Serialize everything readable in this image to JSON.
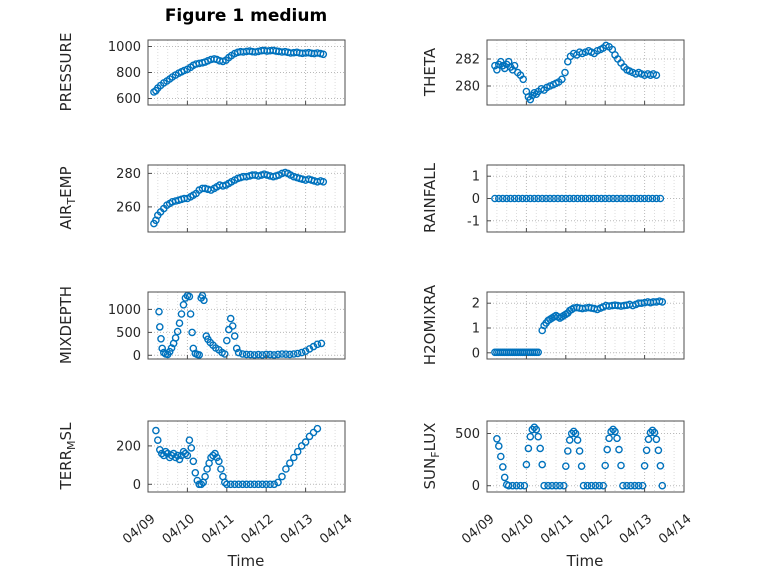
{
  "figure": {
    "title": "Figure 1 medium",
    "xlabel": "Time",
    "background": "#ffffff",
    "marker_color": "#0072BD",
    "axis_color": "#4d4d4d",
    "grid_color": "#b9b9b9",
    "minor_grid_color": "#dcdcdc"
  },
  "x_axis": {
    "lim": [
      0,
      5
    ],
    "ticks": [
      0,
      1,
      2,
      3,
      4,
      5
    ],
    "tick_labels": [
      "04/09",
      "04/10",
      "04/11",
      "04/12",
      "04/13",
      "04/14"
    ],
    "minor_step": 0.25
  },
  "chart_data": [
    {
      "type": "scatter",
      "name": "pressure",
      "col": 0,
      "row": 0,
      "ylabel": {
        "pre": "PRESSURE",
        "sub": "",
        "post": ""
      },
      "ylim": [
        550,
        1050
      ],
      "yticks": [
        600,
        800,
        1000
      ],
      "x": [
        0.15,
        0.2,
        0.25,
        0.32,
        0.4,
        0.48,
        0.55,
        0.62,
        0.7,
        0.78,
        0.85,
        0.92,
        1.0,
        1.08,
        1.15,
        1.22,
        1.3,
        1.38,
        1.45,
        1.52,
        1.6,
        1.68,
        1.75,
        1.82,
        1.9,
        1.98,
        2.05,
        2.12,
        2.2,
        2.28,
        2.35,
        2.42,
        2.5,
        2.58,
        2.65,
        2.72,
        2.8,
        2.88,
        2.95,
        3.02,
        3.1,
        3.18,
        3.25,
        3.32,
        3.4,
        3.48,
        3.55,
        3.62,
        3.7,
        3.78,
        3.85,
        3.92,
        4.0,
        4.08,
        4.15,
        4.22,
        4.3,
        4.38,
        4.45
      ],
      "y": [
        650,
        660,
        680,
        700,
        720,
        735,
        750,
        765,
        780,
        795,
        805,
        815,
        825,
        840,
        855,
        865,
        870,
        875,
        880,
        890,
        900,
        905,
        900,
        890,
        885,
        895,
        915,
        930,
        945,
        955,
        960,
        958,
        962,
        965,
        960,
        958,
        962,
        968,
        970,
        965,
        968,
        970,
        965,
        962,
        958,
        960,
        955,
        950,
        952,
        955,
        950,
        948,
        950,
        952,
        948,
        945,
        950,
        945,
        940
      ]
    },
    {
      "type": "scatter",
      "name": "airtemp",
      "col": 0,
      "row": 1,
      "ylabel": {
        "pre": "AIR",
        "sub": "T",
        "post": "EMP"
      },
      "ylim": [
        245,
        285
      ],
      "yticks": [
        260,
        280
      ],
      "x": [
        0.15,
        0.2,
        0.25,
        0.32,
        0.4,
        0.48,
        0.55,
        0.62,
        0.7,
        0.78,
        0.85,
        0.92,
        1.0,
        1.08,
        1.15,
        1.22,
        1.3,
        1.38,
        1.45,
        1.52,
        1.6,
        1.68,
        1.75,
        1.82,
        1.9,
        1.98,
        2.05,
        2.12,
        2.2,
        2.28,
        2.35,
        2.42,
        2.5,
        2.58,
        2.65,
        2.72,
        2.8,
        2.88,
        2.95,
        3.02,
        3.1,
        3.18,
        3.25,
        3.32,
        3.4,
        3.48,
        3.55,
        3.62,
        3.7,
        3.78,
        3.85,
        3.92,
        4.0,
        4.08,
        4.15,
        4.22,
        4.3,
        4.38,
        4.45
      ],
      "y": [
        250,
        252,
        255,
        257,
        259,
        261,
        262,
        263,
        263.5,
        264,
        264.5,
        265,
        265,
        266,
        267,
        268,
        270,
        271,
        271,
        270.5,
        270,
        271,
        272,
        273,
        272.5,
        273,
        274,
        275,
        276,
        277,
        277.5,
        278,
        278,
        278.5,
        279,
        279,
        278.5,
        279,
        279.5,
        279,
        278.5,
        278,
        278.5,
        279,
        280,
        280.5,
        280,
        279,
        278,
        277.5,
        277,
        276.5,
        276,
        276.5,
        276,
        275.5,
        275,
        275.5,
        275
      ]
    },
    {
      "type": "scatter",
      "name": "mixdepth",
      "col": 0,
      "row": 2,
      "ylabel": {
        "pre": "MIXDEPTH",
        "sub": "",
        "post": ""
      },
      "ylim": [
        -80,
        1380
      ],
      "yticks": [
        0,
        500,
        1000
      ],
      "x": [
        0.28,
        0.3,
        0.33,
        0.36,
        0.4,
        0.45,
        0.5,
        0.55,
        0.6,
        0.65,
        0.7,
        0.75,
        0.8,
        0.85,
        0.9,
        0.95,
        1.0,
        1.05,
        1.08,
        1.12,
        1.15,
        1.2,
        1.25,
        1.3,
        1.35,
        1.38,
        1.42,
        1.48,
        1.52,
        1.58,
        1.65,
        1.72,
        1.8,
        1.88,
        1.95,
        2.0,
        2.05,
        2.1,
        2.15,
        2.2,
        2.25,
        2.3,
        2.4,
        2.5,
        2.6,
        2.7,
        2.8,
        2.9,
        3.0,
        3.1,
        3.2,
        3.3,
        3.4,
        3.5,
        3.6,
        3.7,
        3.8,
        3.9,
        4.0,
        4.1,
        4.2,
        4.3,
        4.4
      ],
      "y": [
        950,
        620,
        360,
        150,
        60,
        30,
        20,
        80,
        160,
        260,
        380,
        520,
        700,
        900,
        1100,
        1250,
        1300,
        1280,
        900,
        500,
        150,
        40,
        20,
        10,
        1250,
        1300,
        1200,
        420,
        350,
        280,
        220,
        160,
        120,
        60,
        30,
        320,
        560,
        800,
        640,
        420,
        150,
        60,
        30,
        20,
        15,
        10,
        15,
        10,
        20,
        15,
        10,
        20,
        30,
        25,
        20,
        30,
        40,
        60,
        90,
        140,
        190,
        240,
        260
      ]
    },
    {
      "type": "scatter",
      "name": "terrmsl",
      "col": 0,
      "row": 3,
      "ylabel": {
        "pre": "TERR",
        "sub": "M",
        "post": "SL"
      },
      "ylim": [
        -40,
        330
      ],
      "yticks": [
        0,
        200
      ],
      "x": [
        0.2,
        0.25,
        0.3,
        0.35,
        0.4,
        0.45,
        0.5,
        0.55,
        0.6,
        0.65,
        0.7,
        0.75,
        0.8,
        0.85,
        0.9,
        0.95,
        1.0,
        1.05,
        1.1,
        1.15,
        1.2,
        1.25,
        1.3,
        1.35,
        1.4,
        1.45,
        1.5,
        1.55,
        1.6,
        1.65,
        1.7,
        1.75,
        1.8,
        1.85,
        1.9,
        1.95,
        2.0,
        2.1,
        2.2,
        2.3,
        2.4,
        2.5,
        2.6,
        2.7,
        2.8,
        2.9,
        3.0,
        3.1,
        3.2,
        3.3,
        3.4,
        3.5,
        3.6,
        3.7,
        3.8,
        3.9,
        4.0,
        4.1,
        4.2,
        4.3
      ],
      "y": [
        280,
        230,
        180,
        160,
        150,
        170,
        160,
        140,
        150,
        160,
        140,
        150,
        130,
        150,
        170,
        160,
        150,
        230,
        190,
        120,
        60,
        20,
        0,
        0,
        10,
        40,
        80,
        110,
        140,
        150,
        160,
        140,
        120,
        80,
        40,
        10,
        0,
        0,
        0,
        0,
        0,
        0,
        0,
        0,
        0,
        0,
        0,
        0,
        0,
        10,
        40,
        80,
        110,
        140,
        170,
        200,
        220,
        250,
        270,
        290
      ]
    },
    {
      "type": "scatter",
      "name": "theta",
      "col": 1,
      "row": 0,
      "ylabel": {
        "pre": "THETA",
        "sub": "",
        "post": ""
      },
      "ylim": [
        278.6,
        283.4
      ],
      "yticks": [
        280,
        282
      ],
      "x": [
        0.2,
        0.25,
        0.3,
        0.35,
        0.4,
        0.45,
        0.5,
        0.55,
        0.6,
        0.65,
        0.7,
        0.78,
        0.85,
        0.92,
        1.0,
        1.05,
        1.1,
        1.15,
        1.2,
        1.25,
        1.3,
        1.38,
        1.45,
        1.52,
        1.6,
        1.68,
        1.75,
        1.82,
        1.9,
        1.98,
        2.05,
        2.12,
        2.2,
        2.28,
        2.35,
        2.42,
        2.5,
        2.58,
        2.65,
        2.72,
        2.8,
        2.88,
        2.95,
        3.02,
        3.1,
        3.18,
        3.25,
        3.32,
        3.4,
        3.48,
        3.55,
        3.62,
        3.7,
        3.78,
        3.85,
        3.92,
        4.0,
        4.08,
        4.15,
        4.22,
        4.3
      ],
      "y": [
        281.5,
        281.2,
        281.6,
        281.8,
        281.5,
        281.3,
        281.6,
        281.8,
        281.4,
        281.2,
        281.5,
        281.0,
        280.8,
        280.5,
        279.6,
        279.2,
        279.0,
        279.3,
        279.5,
        279.4,
        279.6,
        279.8,
        279.7,
        279.9,
        280.0,
        280.1,
        280.2,
        280.3,
        280.5,
        281.0,
        281.8,
        282.2,
        282.4,
        282.3,
        282.5,
        282.4,
        282.5,
        282.6,
        282.5,
        282.4,
        282.6,
        282.7,
        282.8,
        283.0,
        282.9,
        282.7,
        282.3,
        282.0,
        281.7,
        281.4,
        281.2,
        281.1,
        281.0,
        280.9,
        281.0,
        280.9,
        280.8,
        280.9,
        280.8,
        280.9,
        280.8
      ]
    },
    {
      "type": "scatter",
      "name": "rainfall",
      "col": 1,
      "row": 1,
      "ylabel": {
        "pre": "RAINFALL",
        "sub": "",
        "post": ""
      },
      "ylim": [
        -1.5,
        1.5
      ],
      "yticks": [
        -1,
        0,
        1
      ],
      "x": [
        0.2,
        0.3,
        0.4,
        0.5,
        0.6,
        0.7,
        0.8,
        0.9,
        1.0,
        1.1,
        1.2,
        1.3,
        1.4,
        1.5,
        1.6,
        1.7,
        1.8,
        1.9,
        2.0,
        2.1,
        2.2,
        2.3,
        2.4,
        2.5,
        2.6,
        2.7,
        2.8,
        2.9,
        3.0,
        3.1,
        3.2,
        3.3,
        3.4,
        3.5,
        3.6,
        3.7,
        3.8,
        3.9,
        4.0,
        4.1,
        4.2,
        4.3,
        4.4
      ],
      "y": [
        0,
        0,
        0,
        0,
        0,
        0,
        0,
        0,
        0,
        0,
        0,
        0,
        0,
        0,
        0,
        0,
        0,
        0,
        0,
        0,
        0,
        0,
        0,
        0,
        0,
        0,
        0,
        0,
        0,
        0,
        0,
        0,
        0,
        0,
        0,
        0,
        0,
        0,
        0,
        0,
        0,
        0,
        0
      ]
    },
    {
      "type": "scatter",
      "name": "h2omixra",
      "col": 1,
      "row": 2,
      "ylabel": {
        "pre": "H2OMIXRA",
        "sub": "",
        "post": ""
      },
      "ylim": [
        -0.25,
        2.45
      ],
      "yticks": [
        0,
        1,
        2
      ],
      "x": [
        0.2,
        0.25,
        0.3,
        0.35,
        0.4,
        0.45,
        0.5,
        0.55,
        0.6,
        0.65,
        0.7,
        0.75,
        0.8,
        0.85,
        0.9,
        0.95,
        1.0,
        1.05,
        1.1,
        1.15,
        1.2,
        1.25,
        1.3,
        1.4,
        1.45,
        1.5,
        1.55,
        1.6,
        1.65,
        1.7,
        1.75,
        1.8,
        1.85,
        1.9,
        1.95,
        2.0,
        2.05,
        2.1,
        2.15,
        2.2,
        2.28,
        2.35,
        2.42,
        2.5,
        2.58,
        2.65,
        2.72,
        2.8,
        2.88,
        2.95,
        3.02,
        3.1,
        3.18,
        3.25,
        3.32,
        3.4,
        3.48,
        3.55,
        3.62,
        3.7,
        3.78,
        3.85,
        3.92,
        4.0,
        4.08,
        4.15,
        4.22,
        4.3,
        4.38,
        4.45
      ],
      "y": [
        0.02,
        0.02,
        0.02,
        0.02,
        0.02,
        0.02,
        0.02,
        0.02,
        0.02,
        0.02,
        0.02,
        0.02,
        0.02,
        0.02,
        0.02,
        0.02,
        0.02,
        0.02,
        0.02,
        0.02,
        0.02,
        0.02,
        0.02,
        0.9,
        1.1,
        1.2,
        1.3,
        1.35,
        1.4,
        1.45,
        1.5,
        1.45,
        1.4,
        1.45,
        1.5,
        1.55,
        1.6,
        1.7,
        1.75,
        1.8,
        1.82,
        1.8,
        1.78,
        1.8,
        1.82,
        1.8,
        1.78,
        1.75,
        1.8,
        1.85,
        1.9,
        1.88,
        1.9,
        1.92,
        1.9,
        1.88,
        1.9,
        1.92,
        1.95,
        1.9,
        1.95,
        2.0,
        2.0,
        2.02,
        2.05,
        2.02,
        2.05,
        2.05,
        2.08,
        2.05
      ]
    },
    {
      "type": "scatter",
      "name": "sunflux",
      "col": 1,
      "row": 3,
      "ylabel": {
        "pre": "SUN",
        "sub": "F",
        "post": "LUX"
      },
      "ylim": [
        -60,
        620
      ],
      "yticks": [
        0,
        500
      ],
      "x": [
        0.25,
        0.3,
        0.35,
        0.4,
        0.45,
        0.5,
        0.55,
        0.65,
        0.75,
        0.85,
        0.95,
        1.0,
        1.05,
        1.1,
        1.15,
        1.2,
        1.25,
        1.3,
        1.35,
        1.4,
        1.45,
        1.55,
        1.65,
        1.75,
        1.85,
        1.95,
        2.0,
        2.05,
        2.1,
        2.15,
        2.2,
        2.25,
        2.3,
        2.35,
        2.4,
        2.45,
        2.55,
        2.65,
        2.75,
        2.85,
        2.95,
        3.0,
        3.05,
        3.1,
        3.15,
        3.2,
        3.25,
        3.3,
        3.35,
        3.4,
        3.45,
        3.55,
        3.65,
        3.75,
        3.85,
        3.95,
        4.0,
        4.05,
        4.1,
        4.15,
        4.2,
        4.25,
        4.3,
        4.35,
        4.4,
        4.45
      ],
      "y": [
        450,
        380,
        280,
        180,
        80,
        10,
        0,
        0,
        0,
        0,
        0,
        202,
        358,
        470,
        538,
        560,
        538,
        470,
        358,
        202,
        0,
        0,
        0,
        0,
        0,
        0,
        187,
        333,
        437,
        500,
        520,
        500,
        437,
        333,
        187,
        0,
        0,
        0,
        0,
        0,
        0,
        194,
        346,
        454,
        518,
        540,
        518,
        454,
        346,
        194,
        0,
        0,
        0,
        0,
        0,
        0,
        191,
        339,
        445,
        509,
        530,
        509,
        445,
        339,
        191,
        0
      ]
    }
  ]
}
